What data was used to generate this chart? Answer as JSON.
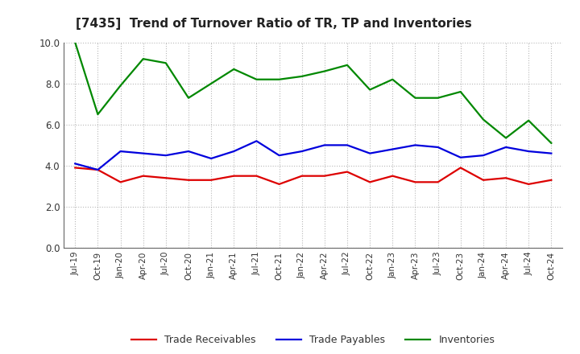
{
  "title": "[7435]  Trend of Turnover Ratio of TR, TP and Inventories",
  "labels": [
    "Jul-19",
    "Oct-19",
    "Jan-20",
    "Apr-20",
    "Jul-20",
    "Oct-20",
    "Jan-21",
    "Apr-21",
    "Jul-21",
    "Oct-21",
    "Jan-22",
    "Apr-22",
    "Jul-22",
    "Oct-22",
    "Jan-23",
    "Apr-23",
    "Jul-23",
    "Oct-23",
    "Jan-24",
    "Apr-24",
    "Jul-24",
    "Oct-24"
  ],
  "trade_receivables": [
    3.9,
    3.8,
    3.2,
    3.5,
    3.4,
    3.3,
    3.3,
    3.5,
    3.5,
    3.1,
    3.5,
    3.5,
    3.7,
    3.2,
    3.5,
    3.2,
    3.2,
    3.9,
    3.3,
    3.4,
    3.1,
    3.3
  ],
  "trade_payables": [
    4.1,
    3.8,
    4.7,
    4.6,
    4.5,
    4.7,
    4.35,
    4.7,
    5.2,
    4.5,
    4.7,
    5.0,
    5.0,
    4.6,
    4.8,
    5.0,
    4.9,
    4.4,
    4.5,
    4.9,
    4.7,
    4.6
  ],
  "inventories": [
    10.0,
    6.5,
    7.9,
    9.2,
    9.0,
    7.3,
    8.0,
    8.7,
    8.2,
    8.2,
    8.35,
    8.6,
    8.9,
    7.7,
    8.2,
    7.3,
    7.3,
    7.6,
    6.25,
    5.35,
    6.2,
    5.1
  ],
  "tr_color": "#dd0000",
  "tp_color": "#0000dd",
  "inv_color": "#008800",
  "ylim": [
    0.0,
    10.0
  ],
  "yticks": [
    0.0,
    2.0,
    4.0,
    6.0,
    8.0,
    10.0
  ],
  "legend_labels": [
    "Trade Receivables",
    "Trade Payables",
    "Inventories"
  ],
  "bg_color": "#ffffff",
  "grid_color": "#999999",
  "linewidth": 1.6
}
